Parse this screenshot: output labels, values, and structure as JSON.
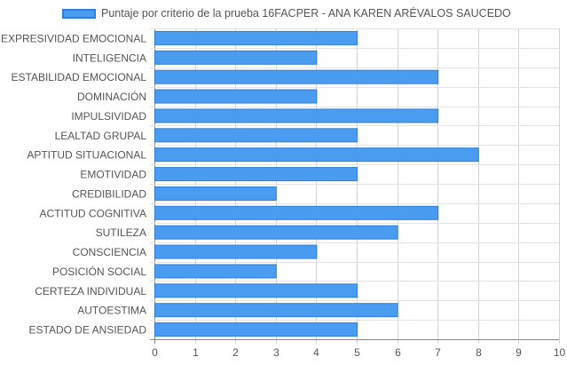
{
  "chart_data": {
    "type": "bar",
    "orientation": "horizontal",
    "categories": [
      "EXPRESIVIDAD EMOCIONAL",
      "INTELIGENCIA",
      "ESTABILIDAD EMOCIONAL",
      "DOMINACIÓN",
      "IMPULSIVIDAD",
      "LEALTAD GRUPAL",
      "APTITUD SITUACIONAL",
      "EMOTIVIDAD",
      "CREDIBILIDAD",
      "ACTITUD COGNITIVA",
      "SUTILEZA",
      "CONSCIENCIA",
      "POSICIÓN SOCIAL",
      "CERTEZA INDIVIDUAL",
      "AUTOESTIMA",
      "ESTADO DE ANSIEDAD"
    ],
    "series": [
      {
        "name": "Puntaje por criterio de la prueba 16FACPER - ANA KAREN ARÉVALOS SAUCEDO",
        "values": [
          5,
          4,
          7,
          4,
          7,
          5,
          8,
          5,
          3,
          7,
          6,
          4,
          3,
          5,
          6,
          5
        ],
        "color": "#4a9cf0",
        "border_color": "#2f7fd8"
      }
    ],
    "xlim": [
      0,
      10
    ],
    "x_ticks": [
      "0",
      "1",
      "2",
      "3",
      "4",
      "5",
      "6",
      "7",
      "8",
      "9",
      "10"
    ],
    "grid": true,
    "legend_position": "top"
  }
}
